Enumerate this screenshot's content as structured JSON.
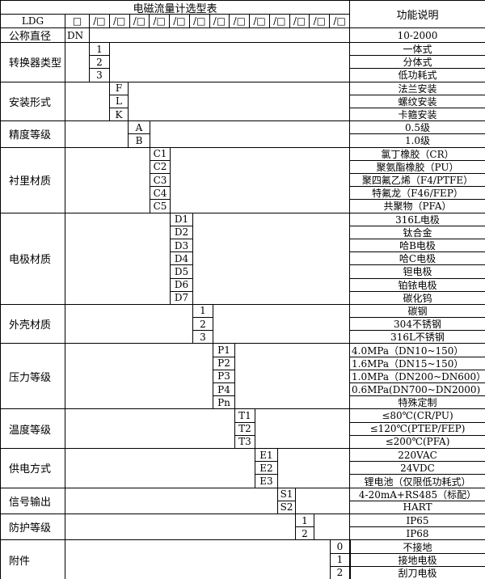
{
  "title": "电磁流量计选型表",
  "func_header": "功能说明",
  "model_prefix": "LDG",
  "first_box": "□",
  "slot": "/□",
  "slot_count": 13,
  "diameter": {
    "label": "公称直径",
    "code": "DN",
    "desc": "10-2000"
  },
  "groups": [
    {
      "label": "转换器类型",
      "rows": [
        {
          "code": "1",
          "desc": "一体式"
        },
        {
          "code": "2",
          "desc": "分体式"
        },
        {
          "code": "3",
          "desc": "低功耗式"
        }
      ]
    },
    {
      "label": "安装形式",
      "rows": [
        {
          "code": "F",
          "desc": "法兰安装"
        },
        {
          "code": "L",
          "desc": "螺纹安装"
        },
        {
          "code": "K",
          "desc": "卡箍安装"
        }
      ]
    },
    {
      "label": "精度等级",
      "rows": [
        {
          "code": "A",
          "desc": "0.5级"
        },
        {
          "code": "B",
          "desc": "1.0级"
        }
      ]
    },
    {
      "label": "衬里材质",
      "rows": [
        {
          "code": "C1",
          "desc": "氯丁橡胶（CR）"
        },
        {
          "code": "C2",
          "desc": "聚氨酯橡胶（PU）"
        },
        {
          "code": "C3",
          "desc": "聚四氟乙烯（F4/PTFE）"
        },
        {
          "code": "C4",
          "desc": "特氟龙（F46/FEP）"
        },
        {
          "code": "C5",
          "desc": "共聚物（PFA）"
        }
      ]
    },
    {
      "label": "电极材质",
      "rows": [
        {
          "code": "D1",
          "desc": "316L电极"
        },
        {
          "code": "D2",
          "desc": "钛合金"
        },
        {
          "code": "D3",
          "desc": "哈B电极"
        },
        {
          "code": "D4",
          "desc": "哈C电极"
        },
        {
          "code": "D5",
          "desc": "钽电极"
        },
        {
          "code": "D6",
          "desc": "铂铱电极"
        },
        {
          "code": "D7",
          "desc": "碳化钨"
        }
      ]
    },
    {
      "label": "外壳材质",
      "rows": [
        {
          "code": "1",
          "desc": "碳钢"
        },
        {
          "code": "2",
          "desc": "304不锈钢"
        },
        {
          "code": "3",
          "desc": "316L不锈钢"
        }
      ]
    },
    {
      "label": "压力等级",
      "rows": [
        {
          "code": "P1",
          "desc": "4.0MPa（DN10~150）",
          "left": true
        },
        {
          "code": "P2",
          "desc": "1.6MPa（DN15~150）",
          "left": true
        },
        {
          "code": "P3",
          "desc": "1.0MPa（DN200~DN600）",
          "left": true
        },
        {
          "code": "P4",
          "desc": "0.6MPa(DN700~DN2000)",
          "left": true
        },
        {
          "code": "Pn",
          "desc": "特殊定制"
        }
      ]
    },
    {
      "label": "温度等级",
      "rows": [
        {
          "code": "T1",
          "desc": "≤80℃(CR/PU)"
        },
        {
          "code": "T2",
          "desc": "≤120℃(PTEP/FEP)"
        },
        {
          "code": "T3",
          "desc": "≤200℃(PFA)"
        }
      ]
    },
    {
      "label": "供电方式",
      "rows": [
        {
          "code": "E1",
          "desc": "220VAC"
        },
        {
          "code": "E2",
          "desc": "24VDC"
        },
        {
          "code": "E3",
          "desc": "锂电池（仅限低功耗式）"
        }
      ]
    },
    {
      "label": "信号输出",
      "rows": [
        {
          "code": "S1",
          "desc": "4-20mA+RS485（标配）"
        },
        {
          "code": "S2",
          "desc": "HART"
        }
      ]
    },
    {
      "label": "防护等级",
      "rows": [
        {
          "code": "1",
          "desc": "IP65"
        },
        {
          "code": "2",
          "desc": "IP68"
        }
      ]
    },
    {
      "label": "附件",
      "rows": [
        {
          "code": "0",
          "desc": "不接地"
        },
        {
          "code": "1",
          "desc": "接地电极"
        },
        {
          "code": "2",
          "desc": "刮刀电极"
        }
      ]
    }
  ]
}
